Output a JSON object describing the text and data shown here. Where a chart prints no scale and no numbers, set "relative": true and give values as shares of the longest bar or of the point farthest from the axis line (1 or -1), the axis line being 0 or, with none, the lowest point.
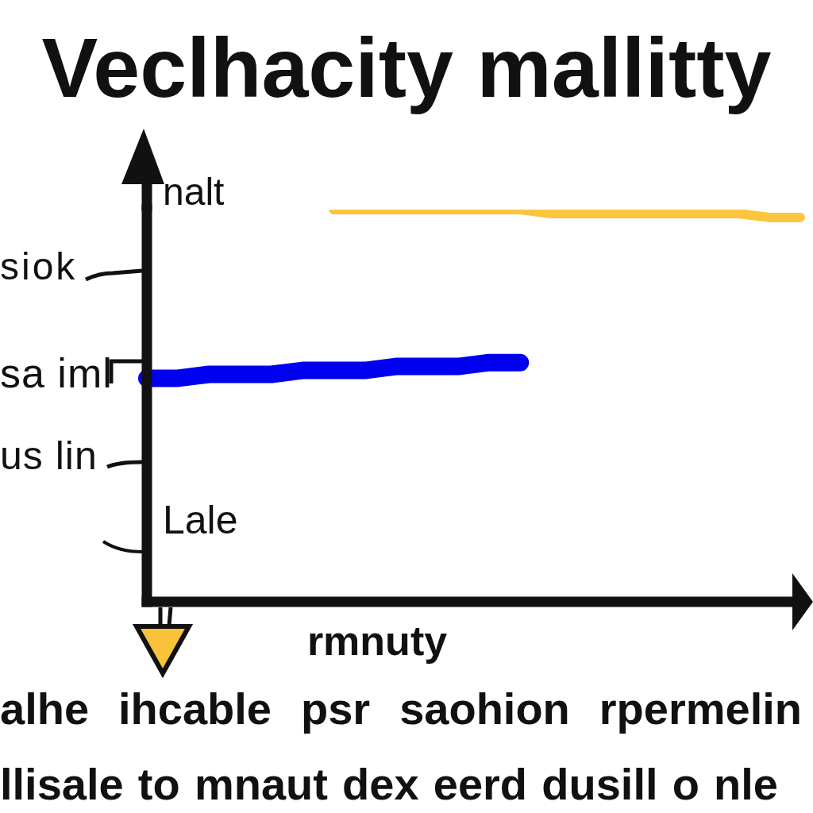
{
  "chart_data": {
    "type": "line",
    "title": "Veclhacity mallitty",
    "xlabel": "rmnuty",
    "relative": true,
    "categories": [
      null,
      null,
      null,
      null,
      null,
      null,
      null,
      null,
      null,
      null,
      null,
      null,
      null,
      null,
      null,
      null,
      null,
      null,
      null,
      null,
      null,
      null
    ],
    "series": [
      {
        "color": "#fbc540",
        "values": [
          null,
          null,
          null,
          null,
          null,
          null,
          1.0,
          1.0,
          1.0,
          1.0,
          1.0,
          1.0,
          1.0,
          0.99,
          0.99,
          0.99,
          0.99,
          0.99,
          0.99,
          0.99,
          0.98,
          0.98
        ]
      },
      {
        "color": "#0000f0",
        "values": [
          0.57,
          0.57,
          0.58,
          0.58,
          0.58,
          0.59,
          0.59,
          0.59,
          0.6,
          0.6,
          0.6,
          0.61,
          0.61,
          null,
          null,
          null,
          null,
          null,
          null,
          null,
          null,
          null
        ]
      }
    ],
    "annotations": [
      "nalt",
      "siok",
      "sa iml",
      "us lin",
      "Lale",
      "alhe ihcable psr saohion rpermelin",
      "llisale to mnaut dex eerd dusill o nle"
    ]
  }
}
